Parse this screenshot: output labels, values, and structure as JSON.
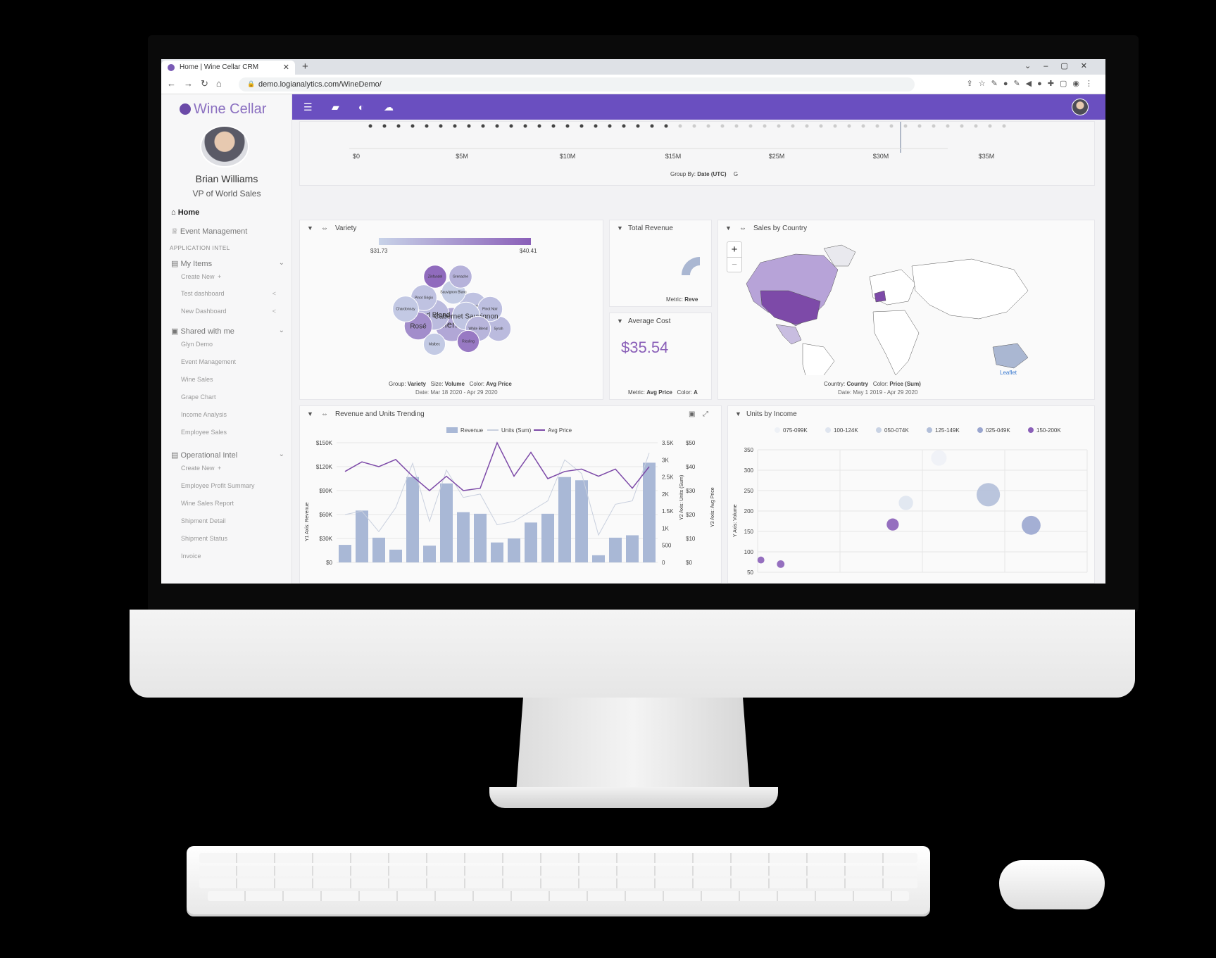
{
  "browser": {
    "tab_title": "Home | Wine Cellar CRM",
    "url": "demo.logianalytics.com/WineDemo/"
  },
  "sidebar": {
    "brand": "Wine Cellar",
    "user_name": "Brian Williams",
    "user_role": "VP of World Sales",
    "home": "Home",
    "event_management": "Event Management",
    "section_app_intel": "APPLICATION INTEL",
    "my_items": "My Items",
    "my_items_children": [
      "Create New",
      "Test dashboard",
      "New Dashboard"
    ],
    "shared_with_me": "Shared with me",
    "shared_children": [
      "Glyn Demo",
      "Event Management",
      "Wine Sales",
      "Grape Chart",
      "Income Analysis",
      "Employee Sales"
    ],
    "operational_intel": "Operational Intel",
    "operational_children": [
      "Create New",
      "Employee Profit Summary",
      "Wine Sales Report",
      "Shipment Detail",
      "Shipment Status",
      "Invoice"
    ]
  },
  "top_strip": {
    "ticks": [
      "$0",
      "$5M",
      "$10M",
      "$15M",
      "$25M",
      "$30M",
      "$35M"
    ],
    "group_by_label": "Group By:",
    "group_by_value": "Date (UTC)",
    "trailing": "G"
  },
  "variety": {
    "title": "Variety",
    "scale_min": "$31.73",
    "scale_max": "$40.41",
    "group_label": "Group:",
    "group_value": "Variety",
    "size_label": "Size:",
    "size_value": "Volume",
    "color_label": "Color:",
    "color_value": "Avg Price",
    "date_range": "Date: Mar 18 2020 - Apr 29 2020",
    "bubbles": [
      {
        "label": "Merlot",
        "size": 1.0,
        "price": 35.0
      },
      {
        "label": "Red Blend",
        "size": 0.85,
        "price": 33.5
      },
      {
        "label": "Rosé",
        "size": 0.7,
        "price": 37.0
      },
      {
        "label": "Shiraz",
        "size": 0.7,
        "price": 33.0
      },
      {
        "label": "Syrah",
        "size": 0.55,
        "price": 33.5
      },
      {
        "label": "Pinot Noir",
        "size": 0.55,
        "price": 33.2
      },
      {
        "label": "Cabernet Sauvignon",
        "size": 0.7,
        "price": 32.8
      },
      {
        "label": "Pinot Grigio",
        "size": 0.6,
        "price": 33.0
      },
      {
        "label": "Chardonnay",
        "size": 0.6,
        "price": 32.5
      },
      {
        "label": "Sauvignon Blanc",
        "size": 0.5,
        "price": 32.2
      },
      {
        "label": "White Blend",
        "size": 0.55,
        "price": 34.0
      },
      {
        "label": "Zinfandel",
        "size": 0.45,
        "price": 39.5
      },
      {
        "label": "Grenache",
        "size": 0.45,
        "price": 34.2
      },
      {
        "label": "Riesling",
        "size": 0.4,
        "price": 38.5
      },
      {
        "label": "Malbec",
        "size": 0.4,
        "price": 32.4
      }
    ]
  },
  "total_revenue": {
    "title": "Total Revenue",
    "metric_label": "Metric:",
    "metric_value": "Reve"
  },
  "average_cost": {
    "title": "Average Cost",
    "value": "$35.54",
    "metric_label": "Metric:",
    "metric_value": "Avg Price",
    "color_label": "Color:",
    "color_value": "A"
  },
  "sales_by_country": {
    "title": "Sales by Country",
    "zoom_in": "+",
    "zoom_out": "−",
    "country_label": "Country:",
    "country_value": "Country",
    "color_label": "Color:",
    "color_value": "Price (Sum)",
    "date_range": "Date: May 1 2019 - Apr 29 2020",
    "attribution": "Leaflet"
  },
  "revenue_trending": {
    "title": "Revenue and Units Trending",
    "legend": [
      "Revenue",
      "Units (Sum)",
      "Avg Price"
    ],
    "y1_axis_label": "Y1 Axis: Revenue",
    "y2_axis_label": "Y2 Axis: Units (Sum)",
    "y3_axis_label": "Y3 Axis: Avg Price",
    "y1_ticks": [
      "$0",
      "$30K",
      "$60K",
      "$90K",
      "$120K",
      "$150K"
    ],
    "y2_ticks": [
      "0",
      "500",
      "1K",
      "1.5K",
      "2K",
      "2.5K",
      "3K",
      "3.5K"
    ],
    "y3_ticks": [
      "$0",
      "$10",
      "$20",
      "$30",
      "$40",
      "$50"
    ],
    "colors": {
      "revenue": "#a9b8d6",
      "units": "#c9d0de",
      "avg_price": "#7d4aa8"
    }
  },
  "units_by_income": {
    "title": "Units by Income",
    "legend": [
      "075-099K",
      "100-124K",
      "050-074K",
      "125-149K",
      "025-049K",
      "150-200K"
    ],
    "legend_colors": [
      "#eef1f6",
      "#dfe5ef",
      "#c9d3e4",
      "#b2bfd9",
      "#9aa6cf",
      "#8a5fb8"
    ],
    "y_axis_label": "Y Axis: Volume",
    "y_ticks": [
      "50",
      "100",
      "150",
      "200",
      "250",
      "300",
      "350"
    ]
  },
  "chart_data": [
    {
      "type": "bar",
      "title": "Revenue and Units Trending",
      "ylabel": "Revenue",
      "ylim": [
        0,
        150000
      ],
      "series": [
        {
          "name": "Revenue",
          "values": [
            22000,
            65000,
            31000,
            16000,
            107000,
            21000,
            99000,
            63000,
            61000,
            25000,
            30000,
            50000,
            61000,
            107000,
            103000,
            9000,
            31000,
            34000,
            125000
          ]
        },
        {
          "name": "Units (Sum)",
          "values": [
            1400,
            1500,
            900,
            1600,
            2900,
            1200,
            2700,
            1900,
            2000,
            1100,
            1200,
            1500,
            1800,
            3000,
            2600,
            800,
            1700,
            1800,
            3200
          ]
        },
        {
          "name": "Avg Price",
          "values": [
            38,
            42,
            40,
            43,
            36,
            30,
            36,
            30,
            31,
            50,
            36,
            46,
            35,
            38,
            39,
            36,
            39,
            31,
            40
          ]
        }
      ],
      "y2lim": [
        0,
        3500
      ],
      "y3lim": [
        0,
        50
      ]
    },
    {
      "type": "scatter",
      "title": "Units by Income",
      "ylabel": "Volume",
      "ylim": [
        50,
        350
      ],
      "points": [
        {
          "group": "075-099K",
          "x": 0.55,
          "y": 330,
          "size": 0.5
        },
        {
          "group": "100-124K",
          "x": 0.45,
          "y": 220,
          "size": 0.45
        },
        {
          "group": "125-149K",
          "x": 0.7,
          "y": 240,
          "size": 0.85
        },
        {
          "group": "025-049K",
          "x": 0.83,
          "y": 165,
          "size": 0.65
        },
        {
          "group": "150-200K",
          "x": 0.41,
          "y": 167,
          "size": 0.35
        },
        {
          "group": "150-200K",
          "x": 0.07,
          "y": 70,
          "size": 0.15
        },
        {
          "group": "150-200K",
          "x": 0.01,
          "y": 80,
          "size": 0.12
        }
      ]
    }
  ]
}
